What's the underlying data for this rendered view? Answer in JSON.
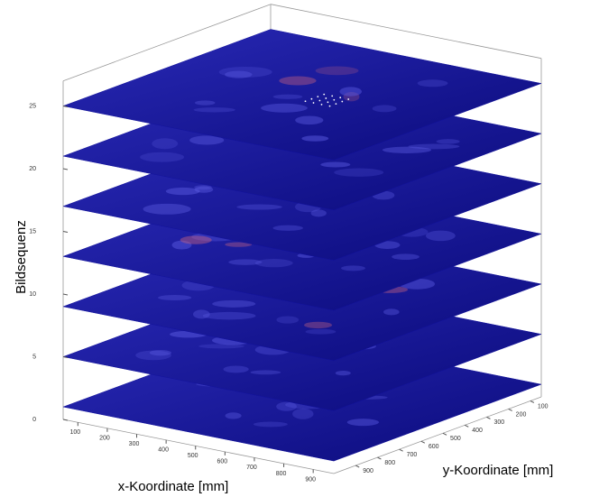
{
  "chart_data": {
    "type": "slices3d",
    "xlabel": "x-Koordinate [mm]",
    "ylabel": "y-Koordinate [mm]",
    "zlabel": "Bildsequenz",
    "xlim": [
      50,
      970
    ],
    "xticks": [
      100,
      200,
      300,
      400,
      500,
      600,
      700,
      800,
      900
    ],
    "ylim": [
      1000,
      50
    ],
    "yticks": [
      100,
      200,
      300,
      400,
      500,
      600,
      700,
      800,
      900
    ],
    "zlim": [
      0,
      27
    ],
    "zticks": [
      0,
      5,
      10,
      15,
      20,
      25
    ],
    "slices": [
      1,
      5,
      9,
      13,
      17,
      21,
      25
    ],
    "color": "#12129e"
  }
}
